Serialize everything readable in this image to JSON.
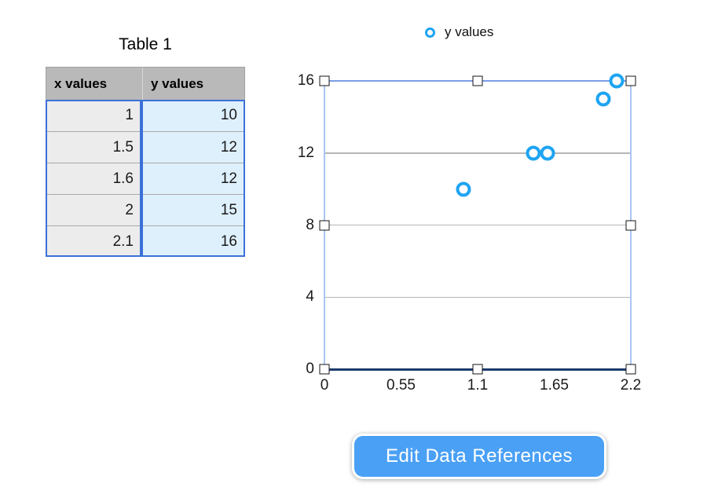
{
  "colors": {
    "accent_blue": "#1ea4f2",
    "table_border_blue": "#3b70d8",
    "header_bg": "#b9b9b9",
    "x_col_bg": "#ececec",
    "y_col_bg": "#def0fc",
    "grid_gray": "#b6b6b6",
    "sel_top_blue": "#7d9ee8",
    "sel_side_blue": "#a9c4f4",
    "axis_navy": "#1c3a6d",
    "button_bg": "#4aa0f5"
  },
  "table": {
    "title": "Table 1",
    "columns": [
      "x values",
      "y values"
    ],
    "rows": [
      [
        "1",
        "10"
      ],
      [
        "1.5",
        "12"
      ],
      [
        "1.6",
        "12"
      ],
      [
        "2",
        "15"
      ],
      [
        "2.1",
        "16"
      ]
    ]
  },
  "chart_data": {
    "type": "scatter",
    "title": "",
    "legend_entries": [
      "y values"
    ],
    "legend_position": "top",
    "series": [
      {
        "name": "y values",
        "points": [
          {
            "x": 1,
            "y": 10
          },
          {
            "x": 1.5,
            "y": 12
          },
          {
            "x": 1.6,
            "y": 12
          },
          {
            "x": 2,
            "y": 15
          },
          {
            "x": 2.1,
            "y": 16
          }
        ]
      }
    ],
    "xlabel": "",
    "ylabel": "",
    "xlim": [
      0,
      2.2
    ],
    "ylim": [
      0,
      16
    ],
    "x_tick_labels": [
      "0",
      "0.55",
      "1.1",
      "1.65",
      "2.2"
    ],
    "y_tick_labels": [
      "0",
      "4",
      "8",
      "12",
      "16"
    ],
    "grid": "horizontal",
    "selected": true
  },
  "button": {
    "label": "Edit Data References"
  }
}
